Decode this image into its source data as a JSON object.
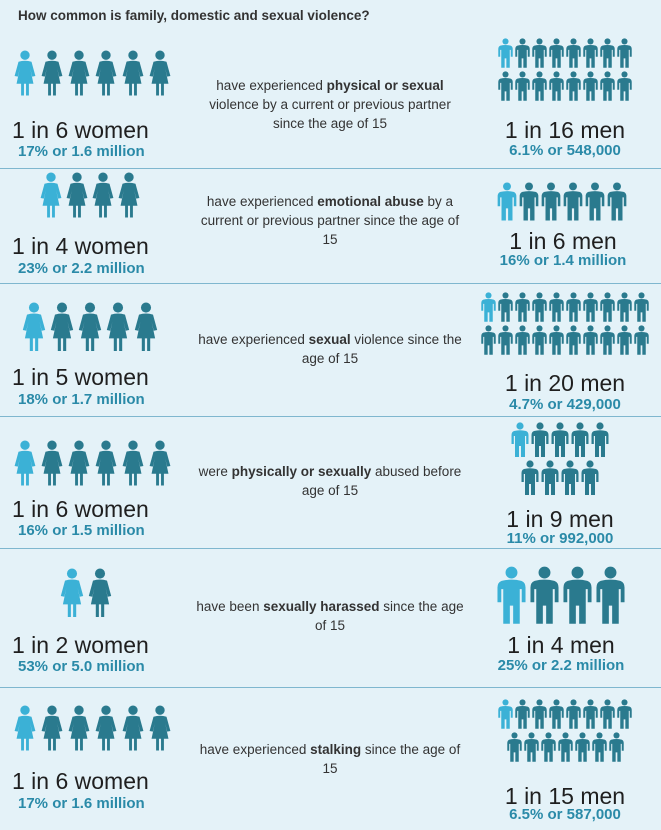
{
  "title": "How common is family, domestic and sexual violence?",
  "colors": {
    "highlight": "#3bb1d6",
    "figure": "#2a7a8e",
    "stat_text": "#2a8aa8"
  },
  "rows": [
    {
      "desc_pre": "have experienced ",
      "desc_bold": "physical or sexual",
      "desc_post": " violence by a current or previous partner since the age of 15",
      "women_ratio": "1 in 6 women",
      "women_stat": "17% or 1.6 million",
      "men_ratio": "1 in 16 men",
      "men_stat": "6.1% or 548,000",
      "women_count": 6,
      "women_highlight": 1,
      "men_count": 16,
      "men_highlight": 1
    },
    {
      "desc_pre": "have experienced ",
      "desc_bold": "emotional abuse",
      "desc_post": " by a current or previous partner since the age of 15",
      "women_ratio": "1 in 4 women",
      "women_stat": "23% or 2.2 million",
      "men_ratio": "1 in 6 men",
      "men_stat": "16% or 1.4 million",
      "women_count": 4,
      "women_highlight": 1,
      "men_count": 6,
      "men_highlight": 1
    },
    {
      "desc_pre": "have experienced ",
      "desc_bold": "sexual",
      "desc_post": " violence since the age of 15",
      "women_ratio": "1 in 5 women",
      "women_stat": "18% or 1.7 million",
      "men_ratio": "1 in 20 men",
      "men_stat": "4.7% or 429,000",
      "women_count": 5,
      "women_highlight": 1,
      "men_count": 20,
      "men_highlight": 1
    },
    {
      "desc_pre": "were ",
      "desc_bold": "physically or sexually",
      "desc_post": " abused before age of 15",
      "women_ratio": "1 in 6 women",
      "women_stat": "16% or 1.5 million",
      "men_ratio": "1 in 9 men",
      "men_stat": "11% or 992,000",
      "women_count": 6,
      "women_highlight": 1,
      "men_count": 9,
      "men_highlight": 1
    },
    {
      "desc_pre": "have been ",
      "desc_bold": "sexually harassed",
      "desc_post": " since the age of 15",
      "women_ratio": "1 in 2 women",
      "women_stat": "53% or 5.0 million",
      "men_ratio": "1 in 4 men",
      "men_stat": "25% or 2.2 million",
      "women_count": 2,
      "women_highlight": 1,
      "men_count": 4,
      "men_highlight": 1
    },
    {
      "desc_pre": "have experienced ",
      "desc_bold": "stalking",
      "desc_post": " since the age of 15",
      "women_ratio": "1 in 6 women",
      "women_stat": "17% or 1.6 million",
      "men_ratio": "1 in 15 men",
      "men_stat": "6.5% or 587,000",
      "women_count": 6,
      "women_highlight": 1,
      "men_count": 15,
      "men_highlight": 1
    }
  ]
}
